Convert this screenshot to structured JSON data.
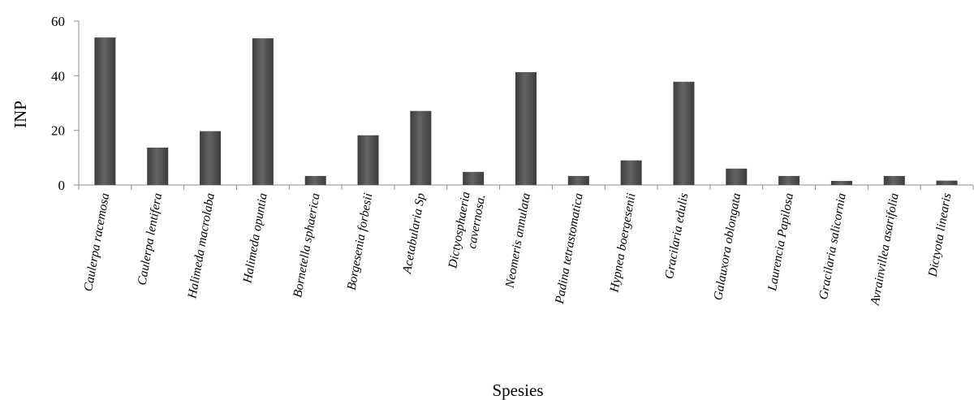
{
  "chart_data": {
    "type": "bar",
    "title": "",
    "xlabel": "Spesies",
    "ylabel": "INP",
    "ylim": [
      0,
      60
    ],
    "yticks": [
      "0",
      "20",
      "40",
      "60"
    ],
    "grid": false,
    "categories": [
      [
        "Caulerpa racemosa"
      ],
      [
        "Caulerpa lentifera"
      ],
      [
        "Halimeda macrolaba"
      ],
      [
        "Halimeda opuntia"
      ],
      [
        "Bornetella sphaerica"
      ],
      [
        "Borgesenia forbesii"
      ],
      [
        "Acetabularia Sp"
      ],
      [
        "Dictyosphaeria",
        "cavernosa."
      ],
      [
        "Neomeris annulata"
      ],
      [
        "Padina tetrastomatica"
      ],
      [
        "Hypnea boergesenii"
      ],
      [
        "Gracilaria edulis"
      ],
      [
        "Galauxora oblongata"
      ],
      [
        "Laurencia Papilosa"
      ],
      [
        "Gracilaria salicornia"
      ],
      [
        "Avrainvillea asarifolia"
      ],
      [
        "Dictyota linearis"
      ]
    ],
    "values": [
      54,
      13.7,
      19.7,
      53.7,
      3.3,
      18.2,
      27.1,
      4.8,
      41.3,
      3.3,
      9.0,
      37.8,
      6.0,
      3.3,
      1.5,
      3.3,
      1.6
    ],
    "bar_color": "#555555"
  }
}
